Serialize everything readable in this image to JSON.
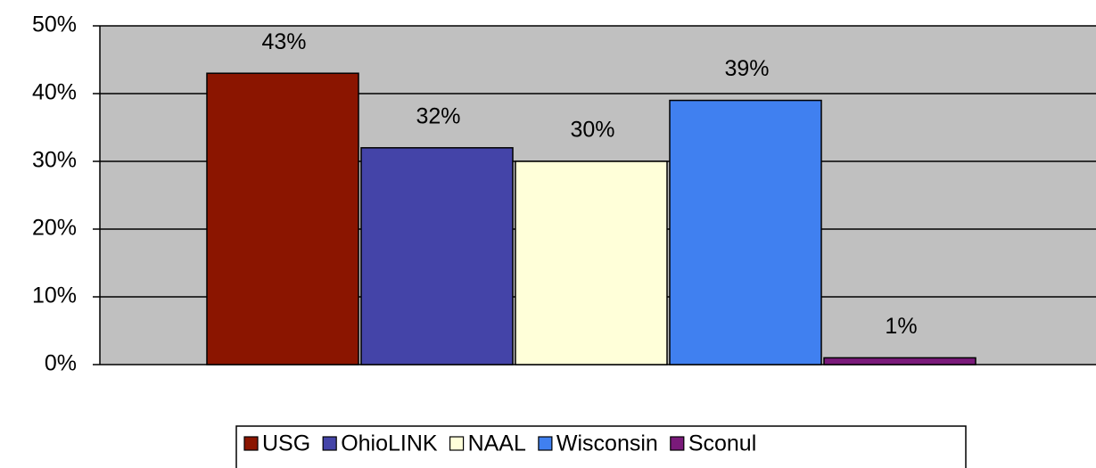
{
  "chart_data": {
    "type": "bar",
    "categories": [
      null
    ],
    "series": [
      {
        "name": "USG",
        "color": "#8b1500",
        "values": [
          43
        ],
        "value_labels": [
          "43%"
        ]
      },
      {
        "name": "OhioLINK",
        "color": "#4444a8",
        "values": [
          32
        ],
        "value_labels": [
          "32%"
        ]
      },
      {
        "name": "NAAL",
        "color": "#ffffd9",
        "values": [
          30
        ],
        "value_labels": [
          "30%"
        ]
      },
      {
        "name": "Wisconsin",
        "color": "#4080f0",
        "values": [
          39
        ],
        "value_labels": [
          "39%"
        ]
      },
      {
        "name": "Sconul",
        "color": "#7a1a7a",
        "values": [
          1
        ],
        "value_labels": [
          "1%"
        ]
      }
    ],
    "ylim": [
      0,
      50
    ],
    "yticks": [
      {
        "value": 0,
        "label": "0%"
      },
      {
        "value": 10,
        "label": "10%"
      },
      {
        "value": 20,
        "label": "20%"
      },
      {
        "value": 30,
        "label": "30%"
      },
      {
        "value": 40,
        "label": "40%"
      },
      {
        "value": 50,
        "label": "50%"
      }
    ],
    "grid": true,
    "legend": "bottom"
  }
}
